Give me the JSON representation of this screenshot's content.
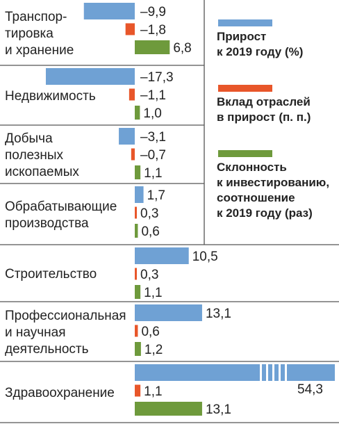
{
  "chart_data": {
    "type": "bar",
    "orientation": "horizontal",
    "categories": [
      "Транспор-\nтировка\nи хранение",
      "Недвижимость",
      "Добыча\nполезных\nископаемых",
      "Обрабатывающие\nпроизводства",
      "Строительство",
      "Профессиональная\nи научная\nдеятельность",
      "Здравоохранение"
    ],
    "series": [
      {
        "name": "Прирост\nк 2019 году (%)",
        "color": "#6fa1d4",
        "values": [
          -9.9,
          -17.3,
          -3.1,
          1.7,
          10.5,
          13.1,
          54.3
        ],
        "labels": [
          "–9,9",
          "–17,3",
          "–3,1",
          "1,7",
          "10,5",
          "13,1",
          "54,3"
        ]
      },
      {
        "name": "Вклад отраслей\nв прирост (п. п.)",
        "color": "#e8562a",
        "values": [
          -1.8,
          -1.1,
          -0.7,
          0.3,
          0.3,
          0.6,
          1.1
        ],
        "labels": [
          "–1,8",
          "–1,1",
          "–0,7",
          "0,3",
          "0,3",
          "0,6",
          "1,1"
        ]
      },
      {
        "name": "Склонность\nк инвестированию,\nсоотношение\nк 2019 году (раз)",
        "color": "#6e9a3c",
        "values": [
          6.8,
          1.0,
          1.1,
          0.6,
          1.1,
          1.2,
          13.1
        ],
        "labels": [
          "6,8",
          "1,0",
          "1,1",
          "0,6",
          "1,1",
          "1,2",
          "13,1"
        ]
      }
    ],
    "axis_break": {
      "series": 0,
      "category": 6
    },
    "grid": false,
    "legend_position": "right"
  }
}
